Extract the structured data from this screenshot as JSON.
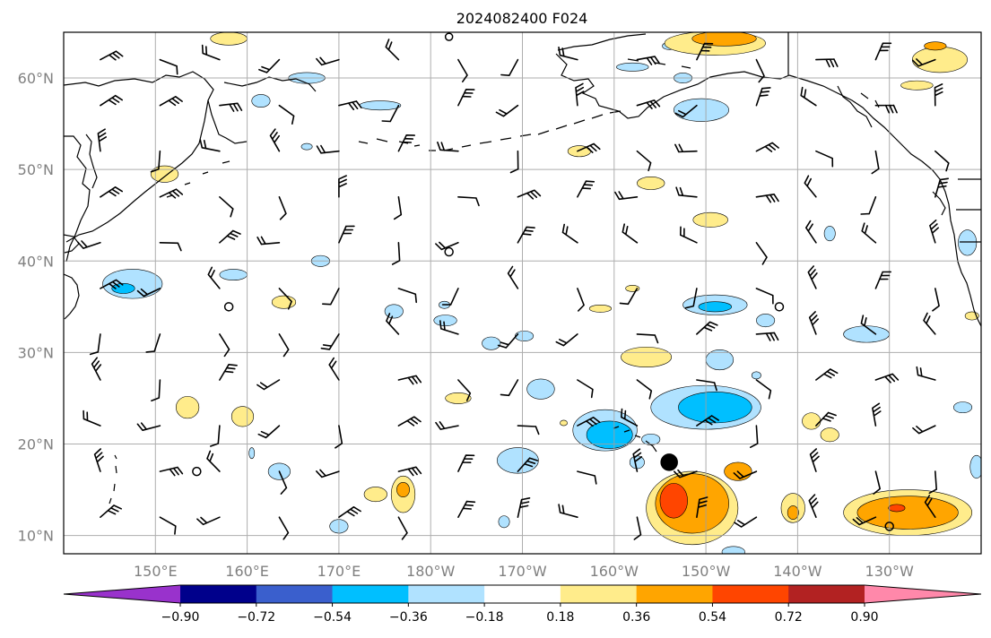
{
  "title": "2024082400 F024",
  "map": {
    "lat_range": [
      8,
      65
    ],
    "lon_range": [
      140,
      240
    ],
    "lat_ticks": [
      {
        "value": 10,
        "label": "10°N"
      },
      {
        "value": 20,
        "label": "20°N"
      },
      {
        "value": 30,
        "label": "30°N"
      },
      {
        "value": 40,
        "label": "40°N"
      },
      {
        "value": 50,
        "label": "50°N"
      },
      {
        "value": 60,
        "label": "60°N"
      }
    ],
    "lon_ticks": [
      {
        "value": 150,
        "label": "150°E"
      },
      {
        "value": 160,
        "label": "160°E"
      },
      {
        "value": 170,
        "label": "170°E"
      },
      {
        "value": 180,
        "label": "180°W"
      },
      {
        "value": 190,
        "label": "170°W"
      },
      {
        "value": 200,
        "label": "160°W"
      },
      {
        "value": 210,
        "label": "150°W"
      },
      {
        "value": 220,
        "label": "140°W"
      },
      {
        "value": 230,
        "label": "130°W"
      }
    ],
    "grid": true,
    "colors": {
      "coast": "#000000",
      "grid": "#a0a0a0",
      "barb": "#000000"
    }
  },
  "colorbar": {
    "levels": [
      -0.9,
      -0.72,
      -0.54,
      -0.36,
      -0.18,
      0.18,
      0.36,
      0.54,
      0.72,
      0.9
    ],
    "labels": [
      "−0.90",
      "−0.72",
      "−0.54",
      "−0.36",
      "−0.18",
      "0.18",
      "0.36",
      "0.54",
      "0.72",
      "0.90"
    ],
    "colors": [
      "#9932cc",
      "#00008b",
      "#3a5fcd",
      "#00bfff",
      "#b0e2ff",
      "#ffffff",
      "#ffec8b",
      "#ffa500",
      "#ff4500",
      "#b22222",
      "#ff88aa"
    ],
    "extend": "both"
  },
  "blobs": [
    {
      "lon": 192,
      "lat": 26,
      "w": 3,
      "h": 2.2,
      "c": "#b0e2ff"
    },
    {
      "lon": 199,
      "lat": 21.5,
      "w": 7,
      "h": 4.5,
      "c": "#b0e2ff"
    },
    {
      "lon": 199.5,
      "lat": 21,
      "w": 5,
      "h": 3,
      "c": "#00bfff"
    },
    {
      "lon": 202.5,
      "lat": 18,
      "w": 1.6,
      "h": 1.4,
      "c": "#b0e2ff"
    },
    {
      "lon": 204,
      "lat": 20.5,
      "w": 2,
      "h": 1.2,
      "c": "#b0e2ff"
    },
    {
      "lon": 210,
      "lat": 24,
      "w": 12,
      "h": 4.8,
      "c": "#b0e2ff"
    },
    {
      "lon": 211,
      "lat": 24,
      "w": 8,
      "h": 3.4,
      "c": "#00bfff"
    },
    {
      "lon": 211,
      "lat": 35.2,
      "w": 7,
      "h": 2.2,
      "c": "#b0e2ff"
    },
    {
      "lon": 211,
      "lat": 35,
      "w": 3.6,
      "h": 1.1,
      "c": "#00bfff"
    },
    {
      "lon": 211.5,
      "lat": 29.2,
      "w": 3,
      "h": 2.2,
      "c": "#b0e2ff"
    },
    {
      "lon": 216.5,
      "lat": 33.5,
      "w": 2,
      "h": 1.4,
      "c": "#b0e2ff"
    },
    {
      "lon": 215.5,
      "lat": 27.5,
      "w": 1,
      "h": 0.8,
      "c": "#b0e2ff"
    },
    {
      "lon": 209.5,
      "lat": 56.5,
      "w": 6,
      "h": 2.5,
      "c": "#b0e2ff"
    },
    {
      "lon": 207.5,
      "lat": 60,
      "w": 2,
      "h": 1.1,
      "c": "#b0e2ff"
    },
    {
      "lon": 202,
      "lat": 61.2,
      "w": 3.5,
      "h": 0.9,
      "c": "#b0e2ff"
    },
    {
      "lon": 206,
      "lat": 63.5,
      "w": 1.5,
      "h": 0.8,
      "c": "#b0e2ff"
    },
    {
      "lon": 189.5,
      "lat": 18.2,
      "w": 4.5,
      "h": 2.8,
      "c": "#b0e2ff"
    },
    {
      "lon": 181.6,
      "lat": 33.5,
      "w": 2.5,
      "h": 1.2,
      "c": "#b0e2ff"
    },
    {
      "lon": 176,
      "lat": 34.5,
      "w": 2,
      "h": 1.5,
      "c": "#b0e2ff"
    },
    {
      "lon": 186.6,
      "lat": 31,
      "w": 2,
      "h": 1.4,
      "c": "#b0e2ff"
    },
    {
      "lon": 181.5,
      "lat": 35.2,
      "w": 1.2,
      "h": 0.8,
      "c": "#b0e2ff"
    },
    {
      "lon": 147.5,
      "lat": 37.5,
      "w": 6.5,
      "h": 3.2,
      "c": "#b0e2ff"
    },
    {
      "lon": 146.5,
      "lat": 37,
      "w": 2.5,
      "h": 1.1,
      "c": "#00bfff"
    },
    {
      "lon": 158.5,
      "lat": 38.5,
      "w": 3,
      "h": 1.2,
      "c": "#b0e2ff"
    },
    {
      "lon": 163.5,
      "lat": 17,
      "w": 2.4,
      "h": 1.8,
      "c": "#b0e2ff"
    },
    {
      "lon": 161.5,
      "lat": 57.5,
      "w": 2,
      "h": 1.4,
      "c": "#b0e2ff"
    },
    {
      "lon": 166.5,
      "lat": 60,
      "w": 4,
      "h": 1.2,
      "c": "#b0e2ff"
    },
    {
      "lon": 174.5,
      "lat": 57,
      "w": 4.5,
      "h": 1,
      "c": "#b0e2ff"
    },
    {
      "lon": 166.5,
      "lat": 52.5,
      "w": 1.2,
      "h": 0.7,
      "c": "#b0e2ff"
    },
    {
      "lon": 168,
      "lat": 40,
      "w": 2,
      "h": 1.2,
      "c": "#b0e2ff"
    },
    {
      "lon": 238.5,
      "lat": 42,
      "w": 2,
      "h": 2.8,
      "c": "#b0e2ff"
    },
    {
      "lon": 238,
      "lat": 24,
      "w": 2,
      "h": 1.2,
      "c": "#b0e2ff"
    },
    {
      "lon": 239.5,
      "lat": 17.5,
      "w": 1.4,
      "h": 2.5,
      "c": "#b0e2ff"
    },
    {
      "lon": 227.5,
      "lat": 32,
      "w": 5,
      "h": 1.8,
      "c": "#b0e2ff"
    },
    {
      "lon": 223.5,
      "lat": 43,
      "w": 1.2,
      "h": 1.6,
      "c": "#b0e2ff"
    },
    {
      "lon": 170,
      "lat": 11,
      "w": 2,
      "h": 1.5,
      "c": "#b0e2ff"
    },
    {
      "lon": 188,
      "lat": 11.5,
      "w": 1.2,
      "h": 1.3,
      "c": "#b0e2ff"
    },
    {
      "lon": 190.2,
      "lat": 31.8,
      "w": 2,
      "h": 1.1,
      "c": "#b0e2ff"
    },
    {
      "lon": 213,
      "lat": 8.2,
      "w": 2.5,
      "h": 1.2,
      "c": "#b0e2ff"
    },
    {
      "lon": 208.5,
      "lat": 13,
      "w": 10,
      "h": 8,
      "c": "#ffec8b"
    },
    {
      "lon": 208.5,
      "lat": 13.5,
      "w": 8,
      "h": 6.5,
      "c": "#ffa500"
    },
    {
      "lon": 206.5,
      "lat": 13.8,
      "w": 3,
      "h": 3.8,
      "c": "#ff4500"
    },
    {
      "lon": 213.5,
      "lat": 17,
      "w": 3,
      "h": 2,
      "c": "#ffa500"
    },
    {
      "lon": 219.5,
      "lat": 13,
      "w": 2.6,
      "h": 3.2,
      "c": "#ffec8b"
    },
    {
      "lon": 219.5,
      "lat": 12.5,
      "w": 1.2,
      "h": 1.5,
      "c": "#ffa500"
    },
    {
      "lon": 232,
      "lat": 12.5,
      "w": 14,
      "h": 5,
      "c": "#ffec8b"
    },
    {
      "lon": 232,
      "lat": 12.5,
      "w": 11,
      "h": 3.6,
      "c": "#ffa500"
    },
    {
      "lon": 230.8,
      "lat": 13,
      "w": 1.8,
      "h": 0.8,
      "c": "#ff4500"
    },
    {
      "lon": 203.5,
      "lat": 29.5,
      "w": 5.5,
      "h": 2.2,
      "c": "#ffec8b"
    },
    {
      "lon": 183,
      "lat": 25,
      "w": 2.8,
      "h": 1.2,
      "c": "#ffec8b"
    },
    {
      "lon": 174,
      "lat": 14.5,
      "w": 2.5,
      "h": 1.6,
      "c": "#ffec8b"
    },
    {
      "lon": 177,
      "lat": 14.5,
      "w": 2.6,
      "h": 4,
      "c": "#ffec8b"
    },
    {
      "lon": 177,
      "lat": 15,
      "w": 1.4,
      "h": 1.6,
      "c": "#ffa500"
    },
    {
      "lon": 153.5,
      "lat": 24,
      "w": 2.5,
      "h": 2.4,
      "c": "#ffec8b"
    },
    {
      "lon": 159.5,
      "lat": 23,
      "w": 2.4,
      "h": 2.2,
      "c": "#ffec8b"
    },
    {
      "lon": 151,
      "lat": 49.5,
      "w": 3,
      "h": 1.8,
      "c": "#ffec8b"
    },
    {
      "lon": 164,
      "lat": 35.5,
      "w": 2.6,
      "h": 1.4,
      "c": "#ffec8b"
    },
    {
      "lon": 210.5,
      "lat": 44.5,
      "w": 3.8,
      "h": 1.6,
      "c": "#ffec8b"
    },
    {
      "lon": 204,
      "lat": 48.5,
      "w": 3,
      "h": 1.4,
      "c": "#ffec8b"
    },
    {
      "lon": 211,
      "lat": 63.8,
      "w": 11,
      "h": 2.6,
      "c": "#ffec8b"
    },
    {
      "lon": 212,
      "lat": 64.3,
      "w": 7,
      "h": 1.6,
      "c": "#ffa500"
    },
    {
      "lon": 235.5,
      "lat": 62,
      "w": 6,
      "h": 2.8,
      "c": "#ffec8b"
    },
    {
      "lon": 235,
      "lat": 63.5,
      "w": 2.4,
      "h": 0.9,
      "c": "#ffa500"
    },
    {
      "lon": 233,
      "lat": 59.2,
      "w": 3.5,
      "h": 1,
      "c": "#ffec8b"
    },
    {
      "lon": 158,
      "lat": 64.3,
      "w": 4,
      "h": 1.4,
      "c": "#ffec8b"
    },
    {
      "lon": 196.2,
      "lat": 52,
      "w": 2.5,
      "h": 1.2,
      "c": "#ffec8b"
    },
    {
      "lon": 221.5,
      "lat": 22.5,
      "w": 2,
      "h": 1.8,
      "c": "#ffec8b"
    },
    {
      "lon": 223.5,
      "lat": 21,
      "w": 2,
      "h": 1.5,
      "c": "#ffec8b"
    },
    {
      "lon": 198.5,
      "lat": 34.8,
      "w": 2.4,
      "h": 0.8,
      "c": "#ffec8b"
    },
    {
      "lon": 202,
      "lat": 37,
      "w": 1.5,
      "h": 0.7,
      "c": "#ffec8b"
    },
    {
      "lon": 239,
      "lat": 34,
      "w": 1.5,
      "h": 0.9,
      "c": "#ffec8b"
    },
    {
      "lon": 194.5,
      "lat": 22.3,
      "w": 0.8,
      "h": 0.6,
      "c": "#ffec8b"
    },
    {
      "lon": 160.5,
      "lat": 19,
      "w": 0.6,
      "h": 1.2,
      "c": "#b0e2ff"
    }
  ],
  "markers": [
    {
      "lon": 206,
      "lat": 18,
      "r": 9,
      "fill": true
    },
    {
      "lon": 158,
      "lat": 35,
      "r": 4.5,
      "fill": false
    },
    {
      "lon": 182,
      "lat": 41,
      "r": 4.5,
      "fill": false
    },
    {
      "lon": 218,
      "lat": 35,
      "r": 4.5,
      "fill": false
    },
    {
      "lon": 154.5,
      "lat": 17,
      "r": 4.5,
      "fill": false
    },
    {
      "lon": 230,
      "lat": 11,
      "r": 4.5,
      "fill": false
    },
    {
      "lon": 182,
      "lat": 64.5,
      "r": 4,
      "fill": false
    }
  ]
}
